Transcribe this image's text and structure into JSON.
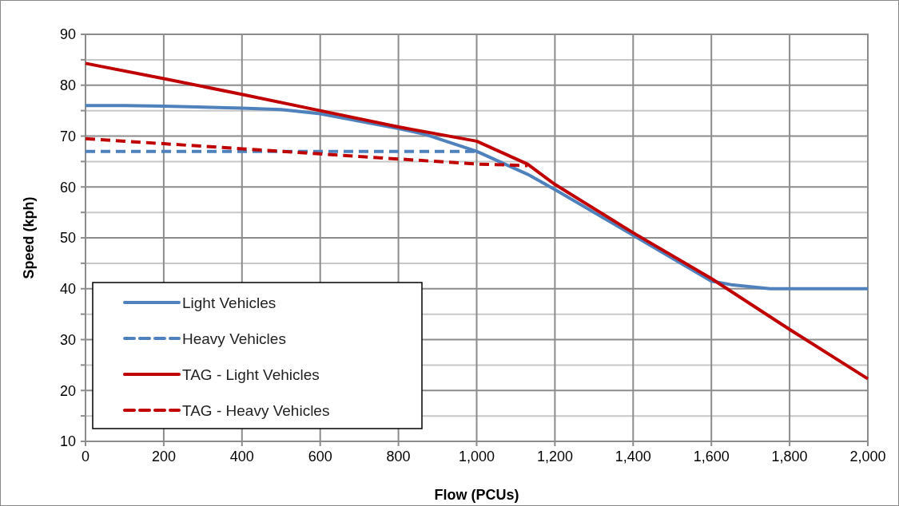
{
  "chart_data": {
    "type": "line",
    "xlabel": "Flow (PCUs)",
    "ylabel": "Speed (kph)",
    "xlim": [
      0,
      2000
    ],
    "xticks": [
      {
        "value": 0,
        "label": "0"
      },
      {
        "value": 200,
        "label": "200"
      },
      {
        "value": 400,
        "label": "400"
      },
      {
        "value": 600,
        "label": "600"
      },
      {
        "value": 800,
        "label": "800"
      },
      {
        "value": 1000,
        "label": "1,000"
      },
      {
        "value": 1200,
        "label": "1,200"
      },
      {
        "value": 1400,
        "label": "1,400"
      },
      {
        "value": 1600,
        "label": "1,600"
      },
      {
        "value": 1800,
        "label": "1,800"
      },
      {
        "value": 2000,
        "label": "2,000"
      }
    ],
    "ylim": [
      10,
      90
    ],
    "yticks": [
      10,
      {
        "value": 15,
        "label": null
      },
      20,
      {
        "value": 25,
        "label": null
      },
      30,
      {
        "value": 35,
        "label": null
      },
      40,
      {
        "value": 45,
        "label": null
      },
      50,
      {
        "value": 55,
        "label": null
      },
      60,
      {
        "value": 65,
        "label": null
      },
      70,
      {
        "value": 75,
        "label": null
      },
      80,
      {
        "value": 85,
        "label": null
      },
      90
    ],
    "grid": true,
    "legend": "bottom left",
    "marker": "none",
    "series": [
      {
        "name": "Light Vehicles",
        "color": "#4f81bd",
        "line_style": "solid",
        "x": [
          0,
          100,
          200,
          400,
          500,
          600,
          800,
          870,
          1000,
          1130,
          1200,
          1400,
          1600,
          1650,
          1750,
          2000
        ],
        "values": [
          76,
          76,
          75.9,
          75.5,
          75.2,
          74.4,
          71.5,
          70.3,
          67,
          62.5,
          59.5,
          50.5,
          41.5,
          40.8,
          40,
          40
        ]
      },
      {
        "name": "Heavy Vehicles",
        "color": "#4f81bd",
        "line_style": "dashed",
        "x": [
          0,
          1000
        ],
        "values": [
          67,
          67
        ]
      },
      {
        "name": "TAG - Light Vehicles",
        "color": "#c00000",
        "line_style": "solid",
        "x": [
          0,
          200,
          400,
          600,
          800,
          1000,
          1130,
          1200,
          1400,
          1600,
          1800,
          2000
        ],
        "values": [
          84.3,
          81.3,
          78.2,
          75,
          71.8,
          69,
          64.5,
          60.5,
          51,
          42,
          32,
          22.3
        ]
      },
      {
        "name": "TAG - Heavy Vehicles",
        "color": "#c00000",
        "line_style": "dashed",
        "x": [
          0,
          200,
          400,
          600,
          800,
          1000,
          1130
        ],
        "values": [
          69.5,
          68.5,
          67.5,
          66.5,
          65.5,
          64.5,
          64.2
        ]
      }
    ]
  }
}
